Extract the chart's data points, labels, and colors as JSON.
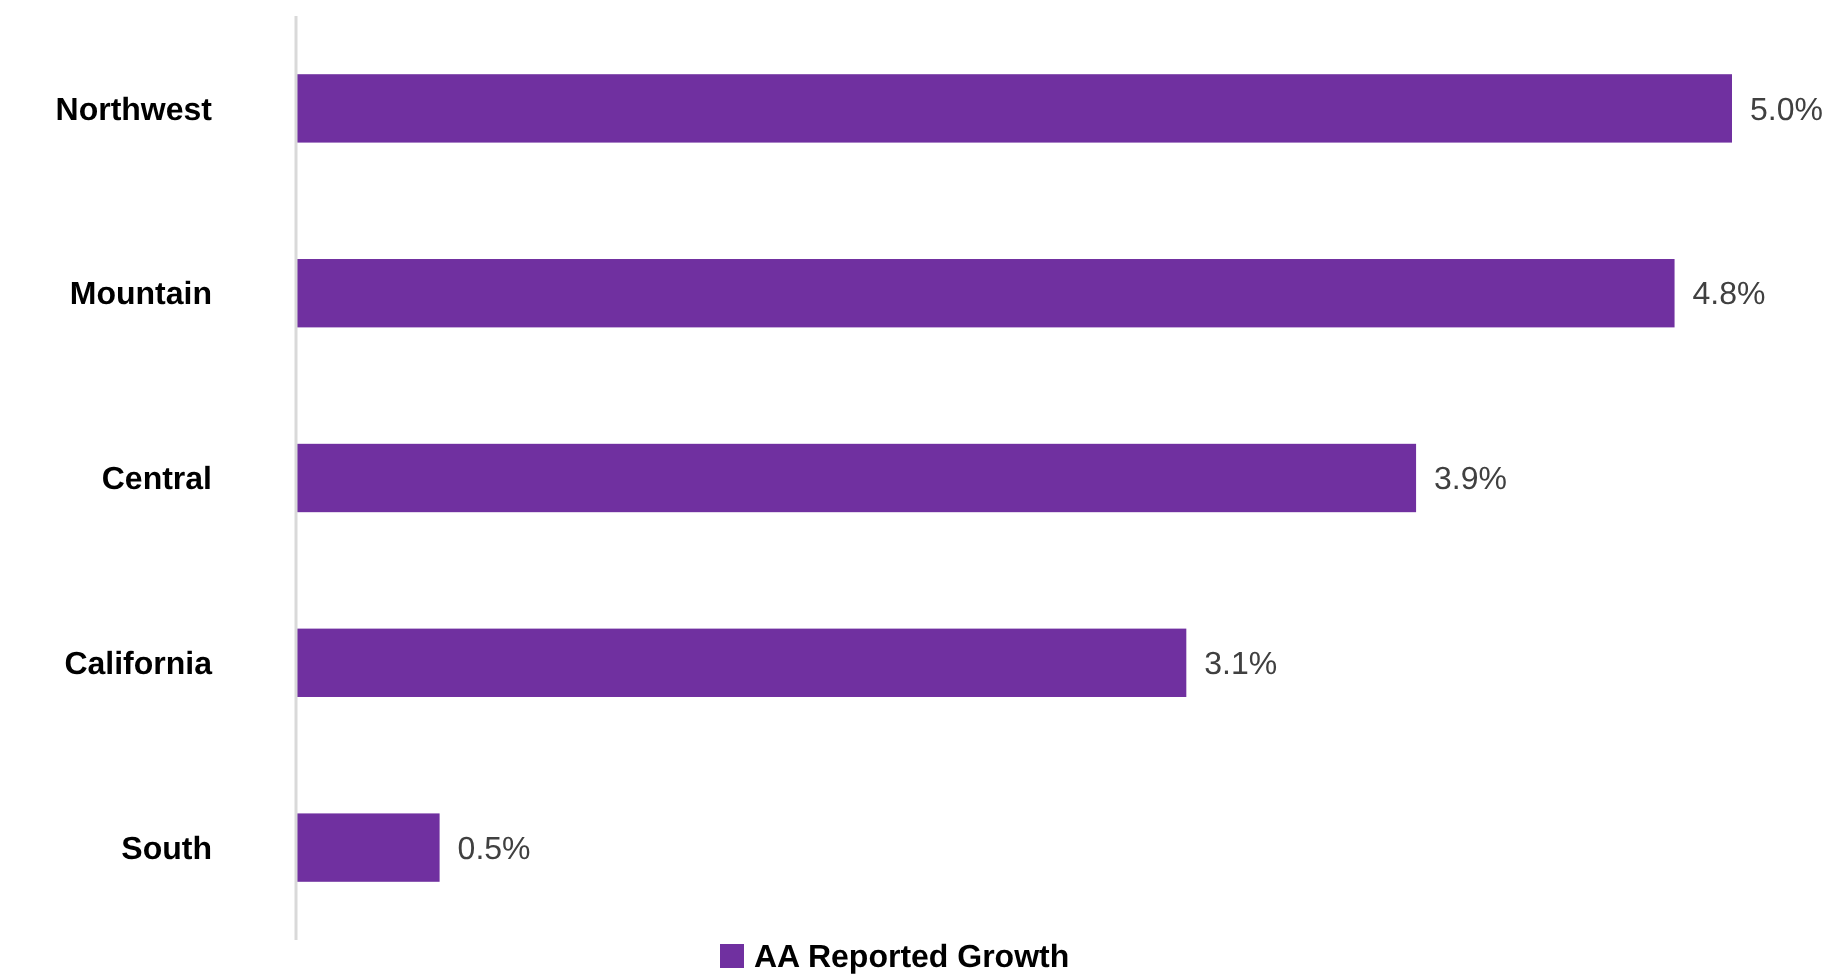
{
  "chart_data": {
    "type": "bar",
    "orientation": "horizontal",
    "categories": [
      "Northwest",
      "Mountain",
      "Central",
      "California",
      "South"
    ],
    "series": [
      {
        "name": "AA Reported Growth",
        "color": "#7030a0",
        "values": [
          5.0,
          4.8,
          3.9,
          3.1,
          0.5
        ],
        "value_labels": [
          "5.0%",
          "4.8%",
          "3.9%",
          "3.1%",
          "0.5%"
        ]
      }
    ],
    "legend": "bottom"
  }
}
